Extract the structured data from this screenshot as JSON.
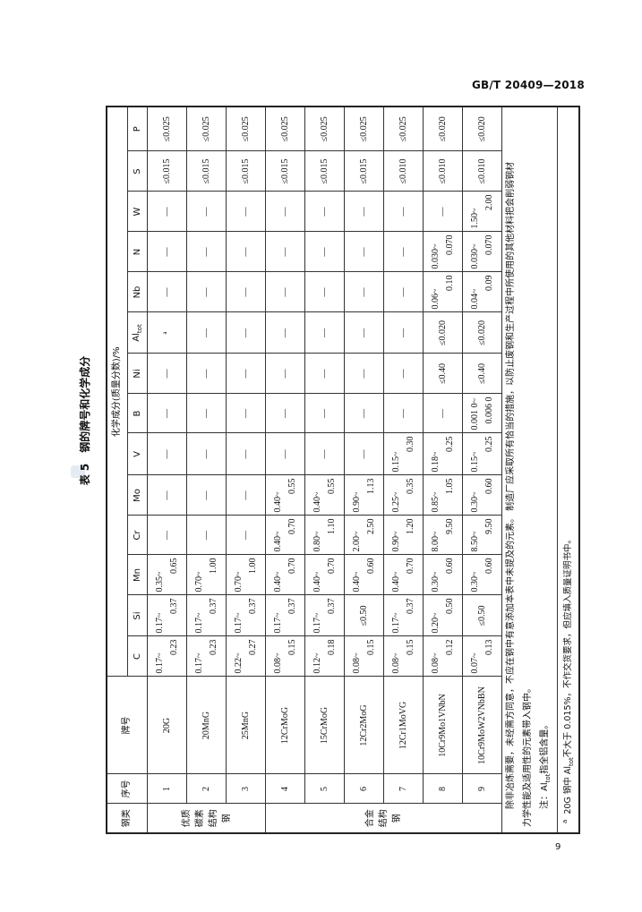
{
  "header": {
    "standard_code": "GB/T 20409—2018"
  },
  "page_number": "9",
  "table": {
    "title": "表 5　钢的牌号和化学成分",
    "headers": {
      "category": "钢类",
      "no": "序号",
      "grade": "牌号",
      "composition": "化学成分(质量分数)/%",
      "elements": [
        "C",
        "Si",
        "Mn",
        "Cr",
        "Mo",
        "V",
        "B",
        "Ni",
        "Al",
        "Nb",
        "N",
        "W",
        "S",
        "P"
      ],
      "al_subscript": "tot"
    },
    "groups": [
      {
        "lines": [
          "优质",
          "碳素",
          "结构",
          "钢"
        ],
        "rows": 3
      },
      {
        "lines": [
          "合金",
          "结构",
          "钢"
        ],
        "rows": 6
      }
    ],
    "rows": [
      {
        "no": "1",
        "grade": "20G",
        "values": [
          [
            "0.17~",
            "0.23"
          ],
          [
            "0.17~",
            "0.37"
          ],
          [
            "0.35~",
            "0.65"
          ],
          "—",
          "—",
          "—",
          "—",
          "—",
          "a",
          "—",
          "—",
          "—",
          "≤0.015",
          "≤0.025"
        ]
      },
      {
        "no": "2",
        "grade": "20MnG",
        "values": [
          [
            "0.17~",
            "0.23"
          ],
          [
            "0.17~",
            "0.37"
          ],
          [
            "0.70~",
            "1.00"
          ],
          "—",
          "—",
          "—",
          "—",
          "—",
          "—",
          "—",
          "—",
          "—",
          "≤0.015",
          "≤0.025"
        ]
      },
      {
        "no": "3",
        "grade": "25MnG",
        "values": [
          [
            "0.22~",
            "0.27"
          ],
          [
            "0.17~",
            "0.37"
          ],
          [
            "0.70~",
            "1.00"
          ],
          "—",
          "—",
          "—",
          "—",
          "—",
          "—",
          "—",
          "—",
          "—",
          "≤0.015",
          "≤0.025"
        ]
      },
      {
        "no": "4",
        "grade": "12CrMoG",
        "values": [
          [
            "0.08~",
            "0.15"
          ],
          [
            "0.17~",
            "0.37"
          ],
          [
            "0.40~",
            "0.70"
          ],
          [
            "0.40~",
            "0.70"
          ],
          [
            "0.40~",
            "0.55"
          ],
          "—",
          "—",
          "—",
          "—",
          "—",
          "—",
          "—",
          "≤0.015",
          "≤0.025"
        ]
      },
      {
        "no": "5",
        "grade": "15CrMoG",
        "values": [
          [
            "0.12~",
            "0.18"
          ],
          [
            "0.17~",
            "0.37"
          ],
          [
            "0.40~",
            "0.70"
          ],
          [
            "0.80~",
            "1.10"
          ],
          [
            "0.40~",
            "0.55"
          ],
          "—",
          "—",
          "—",
          "—",
          "—",
          "—",
          "—",
          "≤0.015",
          "≤0.025"
        ]
      },
      {
        "no": "6",
        "grade": "12Cr2MoG",
        "values": [
          [
            "0.08~",
            "0.15"
          ],
          "≤0.50",
          [
            "0.40~",
            "0.60"
          ],
          [
            "2.00~",
            "2.50"
          ],
          [
            "0.90~",
            "1.13"
          ],
          "—",
          "—",
          "—",
          "—",
          "—",
          "—",
          "—",
          "≤0.015",
          "≤0.025"
        ]
      },
      {
        "no": "7",
        "grade": "12Cr1MoVG",
        "values": [
          [
            "0.08~",
            "0.15"
          ],
          [
            "0.17~",
            "0.37"
          ],
          [
            "0.40~",
            "0.70"
          ],
          [
            "0.90~",
            "1.20"
          ],
          [
            "0.25~",
            "0.35"
          ],
          [
            "0.15~",
            "0.30"
          ],
          "—",
          "—",
          "—",
          "—",
          "—",
          "—",
          "≤0.010",
          "≤0.025"
        ]
      },
      {
        "no": "8",
        "grade": "10Cr9Mo1VNbN",
        "values": [
          [
            "0.08~",
            "0.12"
          ],
          [
            "0.20~",
            "0.50"
          ],
          [
            "0.30~",
            "0.60"
          ],
          [
            "8.00~",
            "9.50"
          ],
          [
            "0.85~",
            "1.05"
          ],
          [
            "0.18~",
            "0.25"
          ],
          "—",
          "≤0.40",
          "≤0.020",
          [
            "0.06~",
            "0.10"
          ],
          [
            "0.030~",
            "0.070"
          ],
          "—",
          "≤0.010",
          "≤0.020"
        ]
      },
      {
        "no": "9",
        "grade": "10Cr9MoW2VNbBN",
        "values": [
          [
            "0.07~",
            "0.13"
          ],
          "≤0.50",
          [
            "0.30~",
            "0.60"
          ],
          [
            "8.50~",
            "9.50"
          ],
          [
            "0.30~",
            "0.60"
          ],
          [
            "0.15~",
            "0.25"
          ],
          [
            "0.001 0~",
            "0.006 0"
          ],
          "≤0.40",
          "≤0.020",
          [
            "0.04~",
            "0.09"
          ],
          [
            "0.030~",
            "0.070"
          ],
          [
            "1.50~",
            "2.00"
          ],
          "≤0.010",
          "≤0.020"
        ]
      }
    ],
    "notes": {
      "line1": "除非冶炼需要，未经需方同意，不应在钢中有意添加本表中未提及的元素。 制造厂应采取所有恰当的措施，以防止废钢和生产过程中所使用的其他材料把会削弱钢材",
      "line2": "力学性能及适用性的元素带入钢中。",
      "note_prefix": "注：Al",
      "note_sub": "tot",
      "note_suffix": "指全铝含量。"
    },
    "footnote": {
      "mark": "a",
      "prefix": "20G 钢中 Al",
      "sub": "tot",
      "suffix": "不大于 0.015%，不作交货要求，但应填入质量证明书中。"
    }
  }
}
